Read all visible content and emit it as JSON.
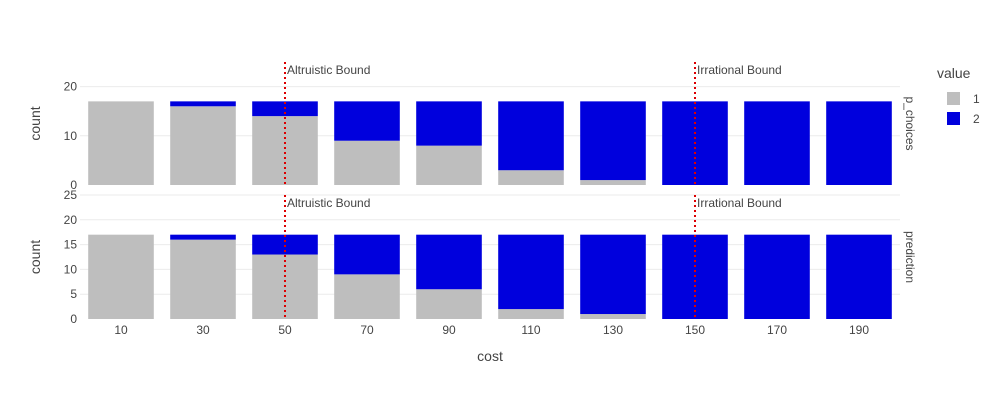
{
  "chart_data": {
    "type": "bar",
    "stacked": true,
    "xlabel": "cost",
    "categories": [
      "10",
      "30",
      "50",
      "70",
      "90",
      "110",
      "130",
      "150",
      "170",
      "190"
    ],
    "x": [
      10,
      30,
      50,
      70,
      90,
      110,
      130,
      150,
      170,
      190
    ],
    "legend": {
      "title": "value",
      "placement": "right",
      "entries": [
        {
          "name": "1",
          "color": "#bebebe"
        },
        {
          "name": "2",
          "color": "#0000dd"
        }
      ]
    },
    "facets": [
      {
        "label": "p_choices",
        "ylabel": "count",
        "ylim": [
          0,
          25
        ],
        "yticks": [
          0,
          10,
          20
        ],
        "series": [
          {
            "name": "1",
            "color": "#bebebe",
            "values": [
              17,
              16,
              14,
              9,
              8,
              3,
              1,
              0,
              0,
              0
            ]
          },
          {
            "name": "2",
            "color": "#0000dd",
            "values": [
              0,
              1,
              3,
              8,
              9,
              14,
              16,
              17,
              17,
              17
            ]
          }
        ]
      },
      {
        "label": "prediction",
        "ylabel": "count",
        "ylim": [
          0,
          25
        ],
        "yticks": [
          0,
          5,
          10,
          15,
          20,
          25
        ],
        "series": [
          {
            "name": "1",
            "color": "#bebebe",
            "values": [
              17,
              16,
              13,
              9,
              6,
              2,
              1,
              0,
              0,
              0
            ]
          },
          {
            "name": "2",
            "color": "#0000dd",
            "values": [
              0,
              1,
              4,
              8,
              11,
              15,
              16,
              17,
              17,
              17
            ]
          }
        ]
      }
    ],
    "vlines": [
      {
        "x": 50,
        "label": "Altruistic Bound",
        "color": "#dd0000",
        "style": "dotted"
      },
      {
        "x": 150,
        "label": "Irrational Bound",
        "color": "#dd0000",
        "style": "dotted"
      }
    ],
    "grid": true
  }
}
